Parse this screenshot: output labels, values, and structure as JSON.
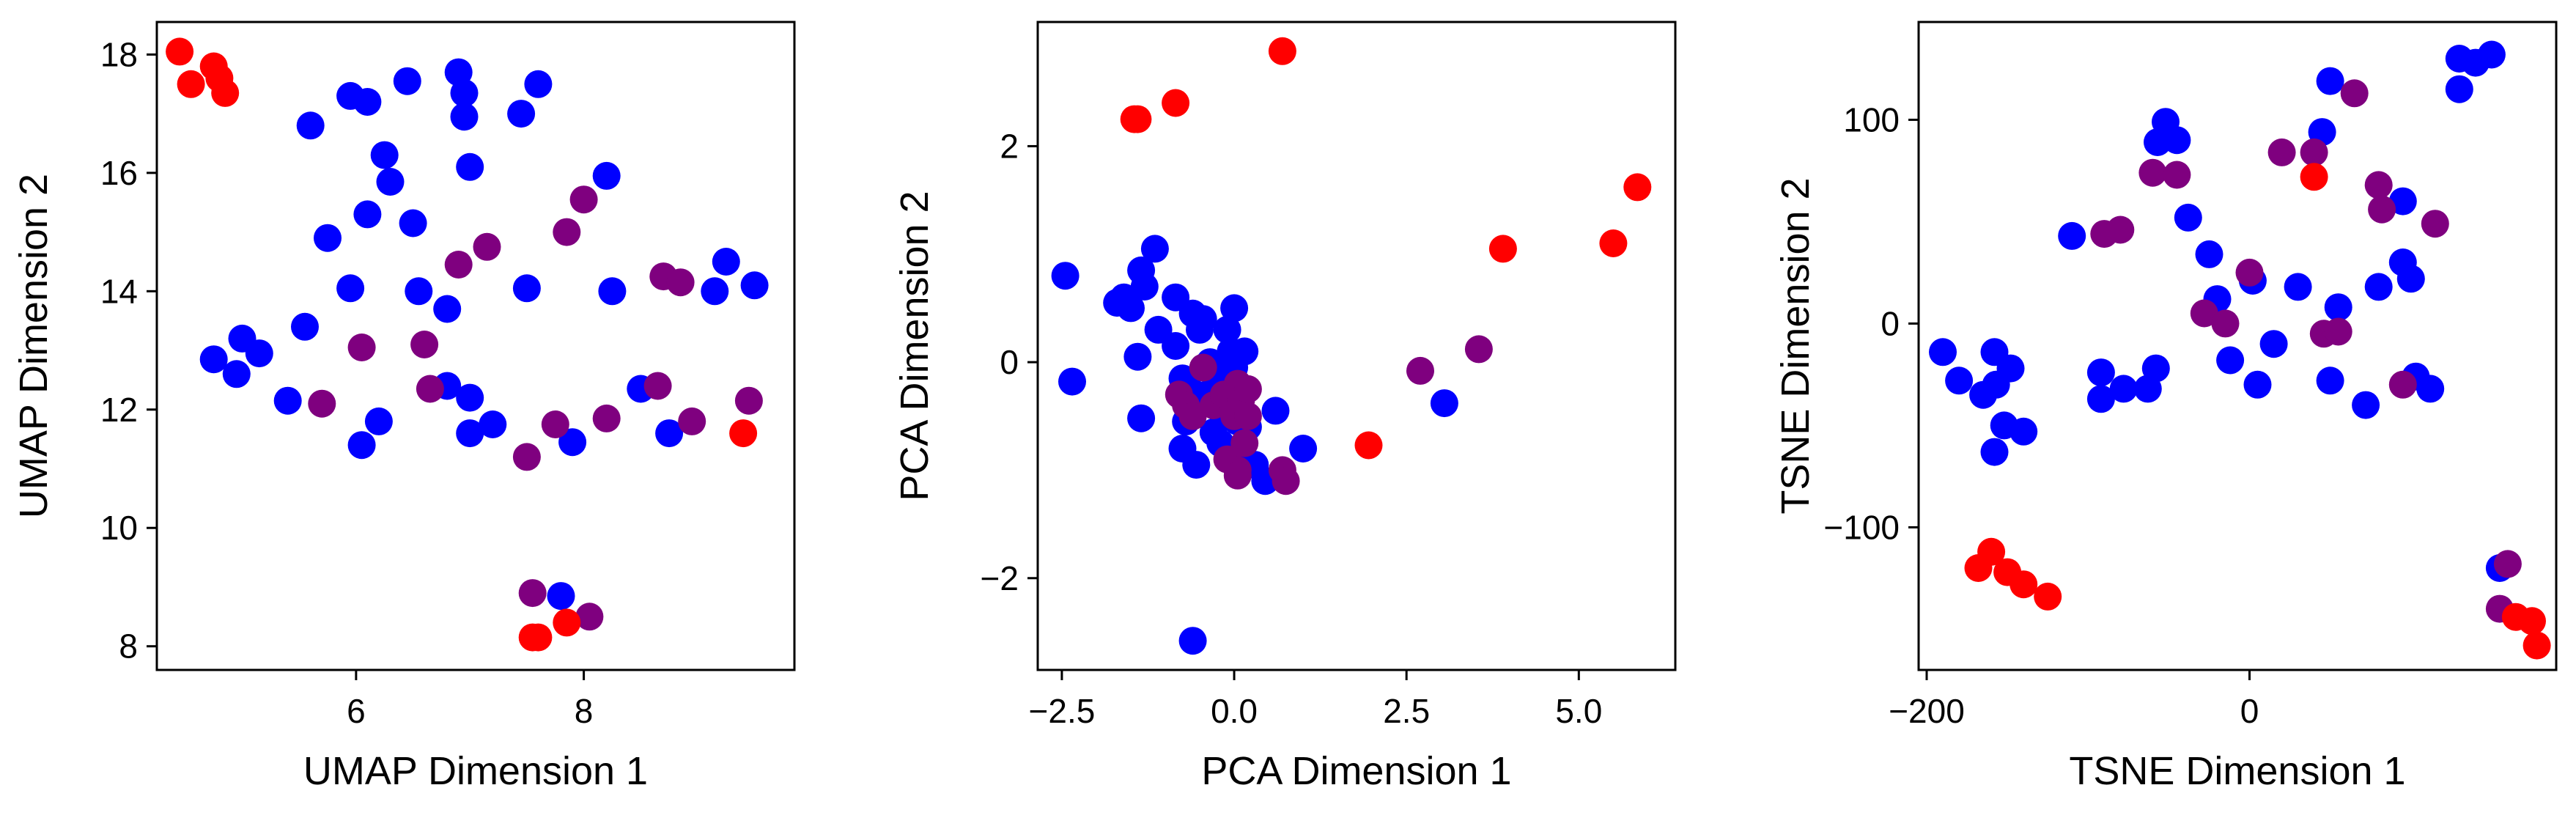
{
  "chart_data": [
    {
      "type": "scatter",
      "xlabel": "UMAP Dimension 1",
      "ylabel": "UMAP Dimension 2",
      "xlim": [
        4.25,
        9.85
      ],
      "ylim": [
        7.6,
        18.55
      ],
      "xticks": [
        6,
        8
      ],
      "xtick_labels": [
        "6",
        "8"
      ],
      "yticks": [
        8,
        10,
        12,
        14,
        16,
        18
      ],
      "ytick_labels": [
        "8",
        "10",
        "12",
        "14",
        "16",
        "18"
      ],
      "series": [
        {
          "color": "#0000ff",
          "points": [
            [
              4.75,
              12.85
            ],
            [
              4.95,
              12.6
            ],
            [
              5,
              13.2
            ],
            [
              5.15,
              12.95
            ],
            [
              5.4,
              12.15
            ],
            [
              5.55,
              13.4
            ],
            [
              5.6,
              16.8
            ],
            [
              5.75,
              14.9
            ],
            [
              5.95,
              14.05
            ],
            [
              5.95,
              17.3
            ],
            [
              6.1,
              17.2
            ],
            [
              6.1,
              15.3
            ],
            [
              6.05,
              11.4
            ],
            [
              6.2,
              11.8
            ],
            [
              6.25,
              16.3
            ],
            [
              6.3,
              15.85
            ],
            [
              6.45,
              17.55
            ],
            [
              6.5,
              15.15
            ],
            [
              6.55,
              14.0
            ],
            [
              6.8,
              13.7
            ],
            [
              6.8,
              12.4
            ],
            [
              6.9,
              17.7
            ],
            [
              6.95,
              17.35
            ],
            [
              6.95,
              16.95
            ],
            [
              7.0,
              16.1
            ],
            [
              7.0,
              12.2
            ],
            [
              7.0,
              11.6
            ],
            [
              7.2,
              11.75
            ],
            [
              7.45,
              17.0
            ],
            [
              7.5,
              14.05
            ],
            [
              7.6,
              17.5
            ],
            [
              7.8,
              8.85
            ],
            [
              7.9,
              11.45
            ],
            [
              8.2,
              15.95
            ],
            [
              8.25,
              14.0
            ],
            [
              8.5,
              12.35
            ],
            [
              8.75,
              11.6
            ],
            [
              9.15,
              14.0
            ],
            [
              9.25,
              14.5
            ],
            [
              9.5,
              14.1
            ]
          ]
        },
        {
          "color": "#7f007f",
          "points": [
            [
              5.7,
              12.1
            ],
            [
              6.05,
              13.05
            ],
            [
              6.6,
              13.1
            ],
            [
              6.65,
              12.35
            ],
            [
              6.9,
              14.45
            ],
            [
              7.15,
              14.75
            ],
            [
              7.5,
              11.2
            ],
            [
              7.55,
              8.9
            ],
            [
              7.75,
              11.75
            ],
            [
              7.85,
              15.0
            ],
            [
              8.0,
              15.55
            ],
            [
              8.05,
              8.5
            ],
            [
              8.2,
              11.85
            ],
            [
              8.65,
              12.4
            ],
            [
              8.7,
              14.25
            ],
            [
              8.85,
              14.15
            ],
            [
              8.95,
              11.8
            ],
            [
              9.45,
              12.15
            ]
          ]
        },
        {
          "color": "#ff0000",
          "points": [
            [
              4.45,
              18.05
            ],
            [
              4.55,
              17.5
            ],
            [
              4.75,
              17.8
            ],
            [
              4.8,
              17.6
            ],
            [
              4.85,
              17.35
            ],
            [
              7.55,
              8.15
            ],
            [
              7.6,
              8.15
            ],
            [
              7.85,
              8.4
            ],
            [
              9.4,
              11.6
            ]
          ]
        }
      ]
    },
    {
      "type": "scatter",
      "xlabel": "PCA Dimension 1",
      "ylabel": "PCA Dimension 2",
      "xlim": [
        -2.85,
        6.4
      ],
      "ylim": [
        -2.85,
        3.15
      ],
      "xticks": [
        -2.5,
        0,
        2.5,
        5
      ],
      "xtick_labels": [
        "−2.5",
        "0.0",
        "2.5",
        "5.0"
      ],
      "yticks": [
        -2,
        0,
        2
      ],
      "ytick_labels": [
        "−2",
        "0",
        "2"
      ],
      "series": [
        {
          "color": "#0000ff",
          "points": [
            [
              -2.45,
              0.8
            ],
            [
              -2.35,
              -0.18
            ],
            [
              -1.7,
              0.55
            ],
            [
              -1.6,
              0.6
            ],
            [
              -1.5,
              0.5
            ],
            [
              -1.4,
              0.05
            ],
            [
              -1.35,
              0.85
            ],
            [
              -1.35,
              -0.52
            ],
            [
              -1.3,
              0.7
            ],
            [
              -1.15,
              1.05
            ],
            [
              -1.1,
              0.3
            ],
            [
              -0.85,
              0.6
            ],
            [
              -0.85,
              0.15
            ],
            [
              -0.75,
              -0.15
            ],
            [
              -0.75,
              -0.8
            ],
            [
              -0.7,
              -0.55
            ],
            [
              -0.65,
              -0.25
            ],
            [
              -0.6,
              0.45
            ],
            [
              -0.55,
              -0.4
            ],
            [
              -0.55,
              -0.95
            ],
            [
              -0.5,
              0.3
            ],
            [
              -0.45,
              0.4
            ],
            [
              -0.4,
              -0.3
            ],
            [
              -0.35,
              0.0
            ],
            [
              -0.3,
              -0.65
            ],
            [
              -0.25,
              -0.2
            ],
            [
              -0.2,
              -0.75
            ],
            [
              -0.15,
              -0.45
            ],
            [
              -0.1,
              0.3
            ],
            [
              -0.05,
              0.1
            ],
            [
              0.0,
              -0.05
            ],
            [
              0.0,
              0.5
            ],
            [
              0.05,
              -0.55
            ],
            [
              0.1,
              -0.8
            ],
            [
              0.15,
              0.1
            ],
            [
              0.2,
              -0.6
            ],
            [
              0.3,
              -0.95
            ],
            [
              0.45,
              -1.1
            ],
            [
              0.6,
              -0.45
            ],
            [
              1.0,
              -0.8
            ],
            [
              3.05,
              -0.38
            ],
            [
              -0.6,
              -2.58
            ]
          ]
        },
        {
          "color": "#7f007f",
          "points": [
            [
              -0.8,
              -0.3
            ],
            [
              -0.7,
              -0.4
            ],
            [
              -0.6,
              -0.5
            ],
            [
              -0.45,
              -0.05
            ],
            [
              -0.3,
              -0.4
            ],
            [
              -0.15,
              -0.3
            ],
            [
              0.0,
              -0.5
            ],
            [
              0.05,
              -0.2
            ],
            [
              0.1,
              -0.35
            ],
            [
              0.15,
              -0.75
            ],
            [
              0.2,
              -0.25
            ],
            [
              -0.1,
              -0.9
            ],
            [
              0.05,
              -1.0
            ],
            [
              0.2,
              -0.5
            ],
            [
              0.05,
              -1.05
            ],
            [
              0.7,
              -1.0
            ],
            [
              0.75,
              -1.1
            ],
            [
              2.7,
              -0.08
            ],
            [
              3.55,
              0.12
            ]
          ]
        },
        {
          "color": "#ff0000",
          "points": [
            [
              -1.45,
              2.25
            ],
            [
              -1.4,
              2.25
            ],
            [
              -0.85,
              2.4
            ],
            [
              0.7,
              2.88
            ],
            [
              1.95,
              -0.77
            ],
            [
              3.9,
              1.05
            ],
            [
              5.5,
              1.1
            ],
            [
              5.85,
              1.62
            ]
          ]
        }
      ]
    },
    {
      "type": "scatter",
      "xlabel": "TSNE Dimension 1",
      "ylabel": "TSNE Dimension 2",
      "xlim": [
        -205,
        190
      ],
      "ylim": [
        -170,
        148
      ],
      "xticks": [
        -200,
        0
      ],
      "xtick_labels": [
        "−200",
        "0"
      ],
      "yticks": [
        -100,
        0,
        100
      ],
      "ytick_labels": [
        "−100",
        "0",
        "100"
      ],
      "series": [
        {
          "color": "#0000ff",
          "points": [
            [
              -190,
              -14
            ],
            [
              -180,
              -28
            ],
            [
              -165,
              -35
            ],
            [
              -158,
              -14
            ],
            [
              -157,
              -30
            ],
            [
              -158,
              -63
            ],
            [
              -152,
              -50
            ],
            [
              -148,
              -22
            ],
            [
              -140,
              -53
            ],
            [
              -110,
              43
            ],
            [
              -92,
              -24
            ],
            [
              -92,
              -37
            ],
            [
              -78,
              -32
            ],
            [
              -63,
              -32
            ],
            [
              -58,
              -22
            ],
            [
              -57,
              89
            ],
            [
              -52,
              99
            ],
            [
              -45,
              90
            ],
            [
              -38,
              52
            ],
            [
              -25,
              34
            ],
            [
              -20,
              12
            ],
            [
              -12,
              -18
            ],
            [
              2,
              21
            ],
            [
              5,
              -30
            ],
            [
              15,
              -10
            ],
            [
              30,
              18
            ],
            [
              45,
              94
            ],
            [
              50,
              -28
            ],
            [
              50,
              119
            ],
            [
              55,
              8
            ],
            [
              72,
              -40
            ],
            [
              80,
              18
            ],
            [
              95,
              60
            ],
            [
              95,
              30
            ],
            [
              100,
              22
            ],
            [
              103,
              -26
            ],
            [
              112,
              -32
            ],
            [
              130,
              130
            ],
            [
              130,
              115
            ],
            [
              140,
              128
            ],
            [
              150,
              132
            ],
            [
              155,
              -120
            ]
          ]
        },
        {
          "color": "#7f007f",
          "points": [
            [
              -90,
              44
            ],
            [
              -80,
              46
            ],
            [
              -60,
              74
            ],
            [
              -45,
              73
            ],
            [
              -28,
              5
            ],
            [
              -15,
              0
            ],
            [
              0,
              25
            ],
            [
              20,
              84
            ],
            [
              40,
              84
            ],
            [
              46,
              -5
            ],
            [
              55,
              -4
            ],
            [
              65,
              113
            ],
            [
              80,
              68
            ],
            [
              82,
              56
            ],
            [
              95,
              -30
            ],
            [
              115,
              49
            ],
            [
              155,
              -140
            ],
            [
              160,
              -118
            ]
          ]
        },
        {
          "color": "#ff0000",
          "points": [
            [
              -168,
              -120
            ],
            [
              -160,
              -112
            ],
            [
              -150,
              -122
            ],
            [
              -140,
              -128
            ],
            [
              -125,
              -134
            ],
            [
              40,
              72
            ],
            [
              165,
              -144
            ],
            [
              175,
              -146
            ],
            [
              178,
              -158
            ]
          ]
        }
      ]
    }
  ]
}
